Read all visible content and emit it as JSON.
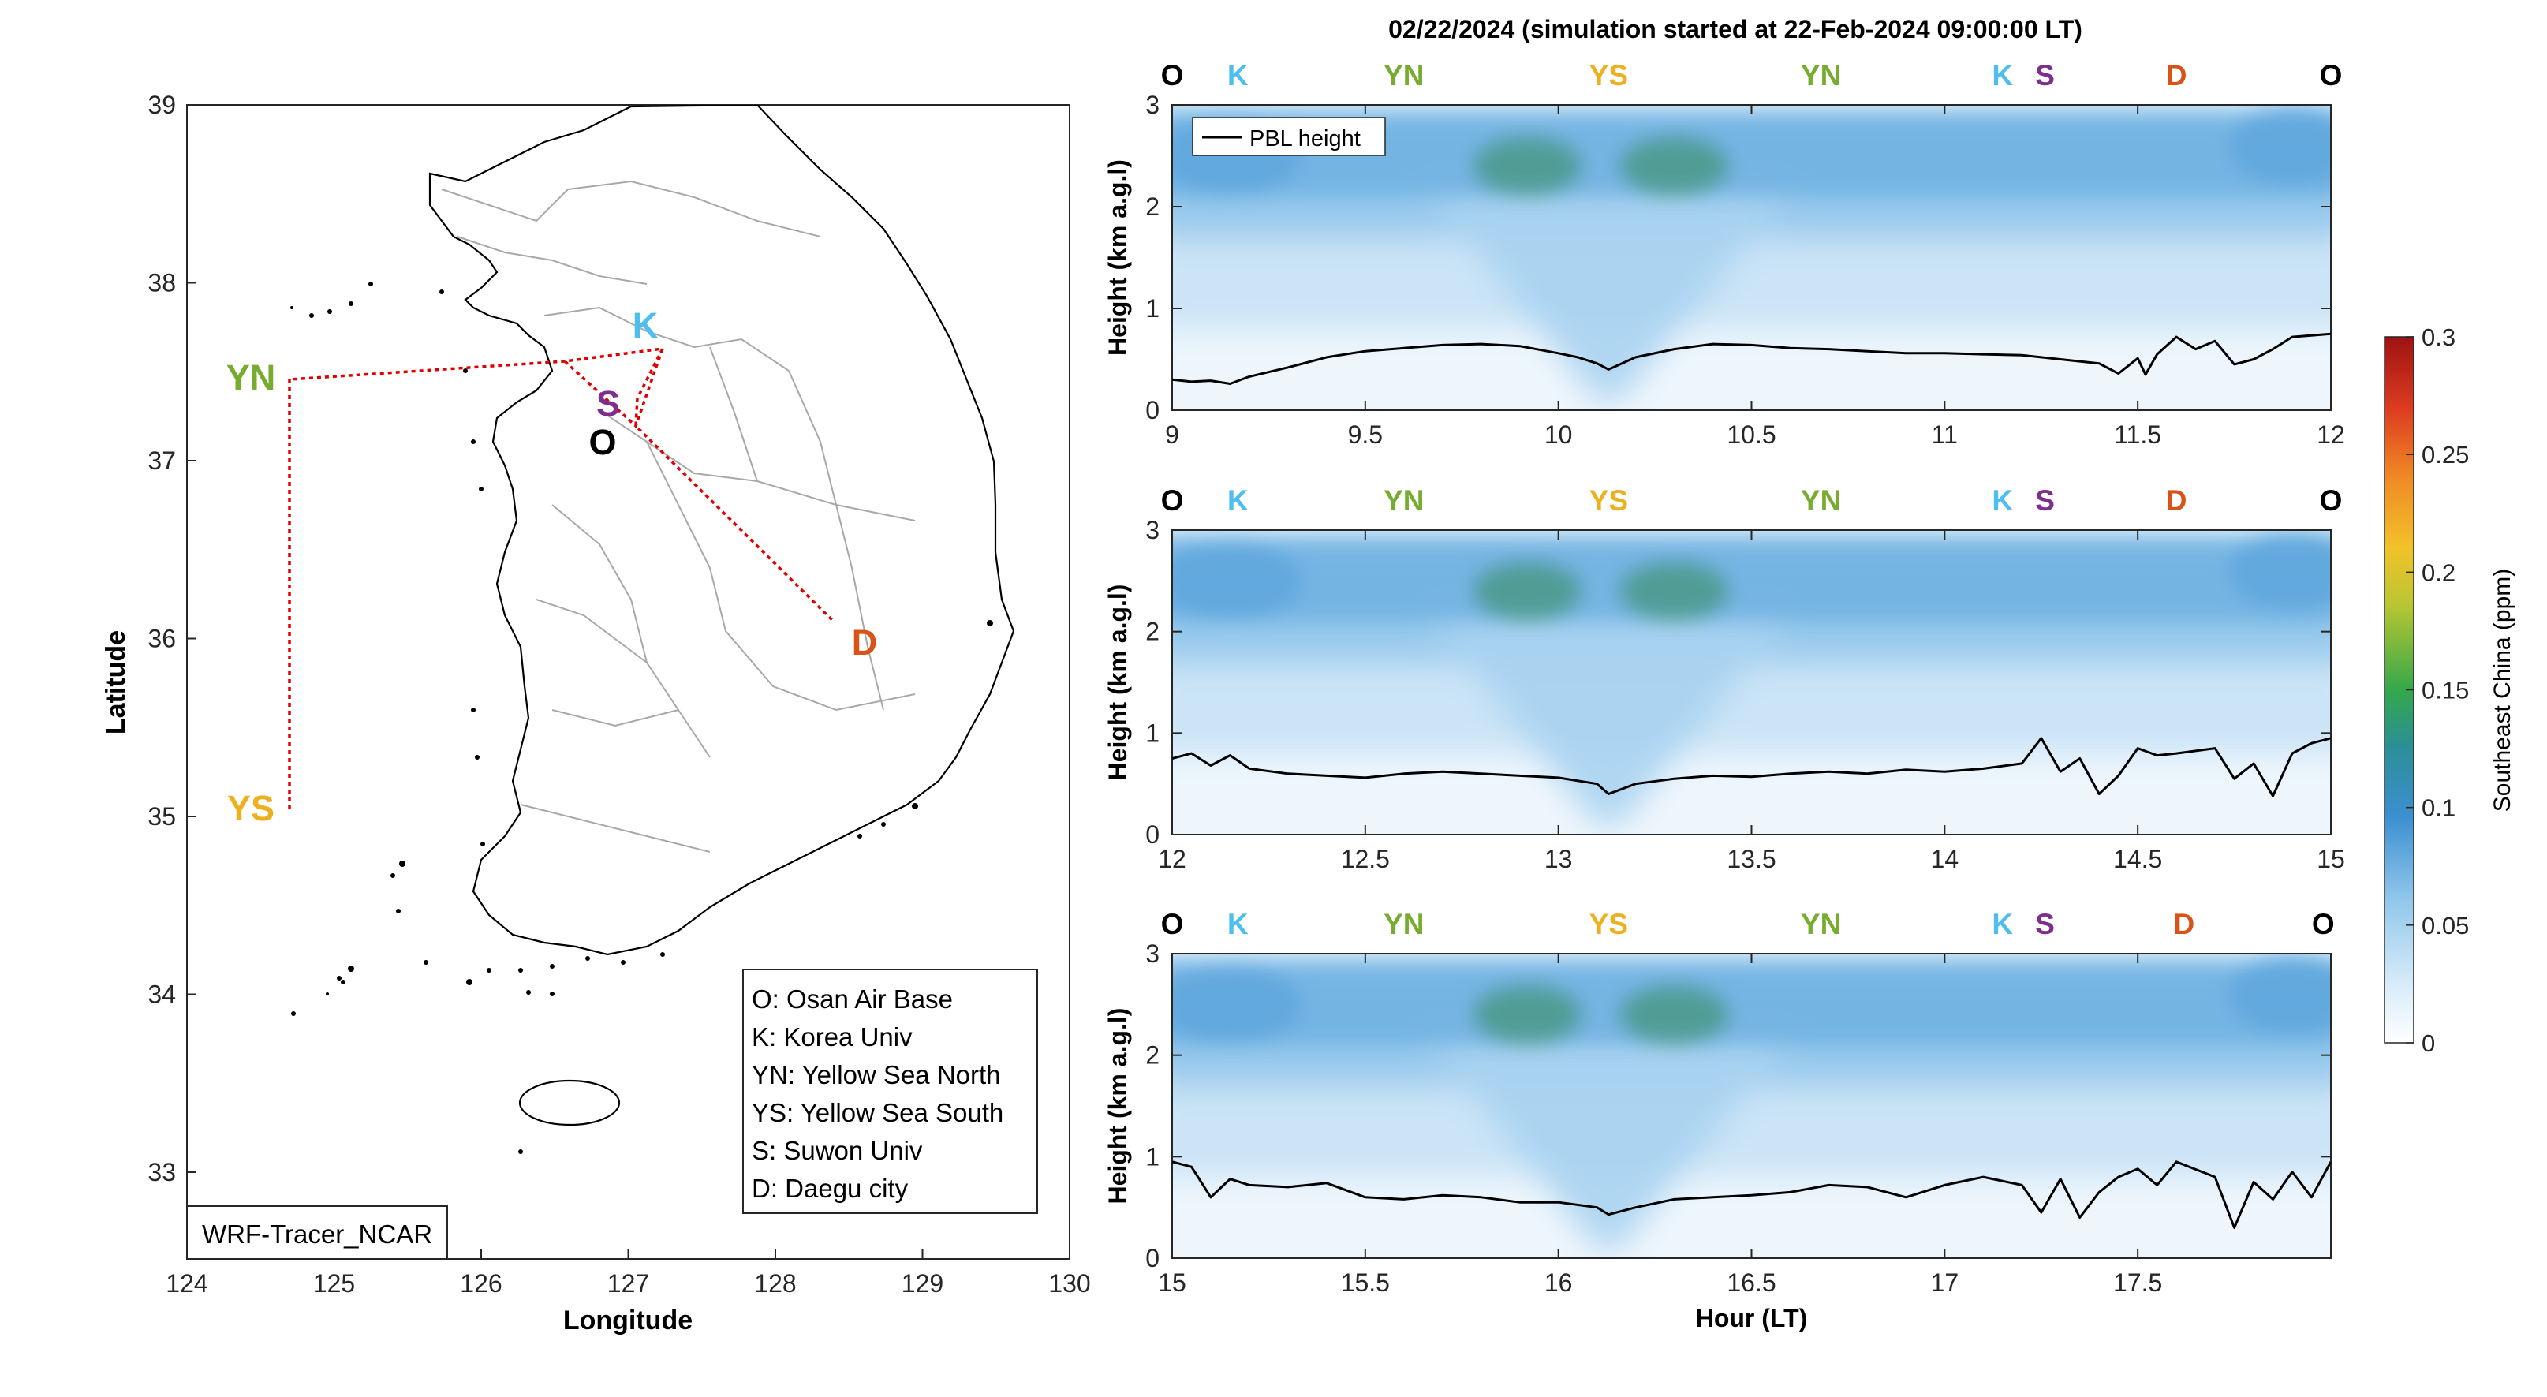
{
  "figure_title": "02/22/2024 (simulation started at 22-Feb-2024 09:00:00 LT)",
  "map": {
    "xlabel": "Longitude",
    "ylabel": "Latitude",
    "xticks": [
      "124",
      "125",
      "126",
      "127",
      "128",
      "129",
      "130"
    ],
    "yticks": [
      "33",
      "34",
      "35",
      "36",
      "37",
      "38",
      "39"
    ],
    "model_label": "WRF-Tracer_NCAR",
    "legend_lines": [
      "O: Osan Air Base",
      "K: Korea Univ",
      "YN: Yellow Sea North",
      "YS: Yellow Sea South",
      "S: Suwon Univ",
      "D: Daegu city"
    ],
    "sites": [
      {
        "id": "YN",
        "label": "YN",
        "lon": 124.7,
        "lat": 37.45,
        "color": "#77ac30"
      },
      {
        "id": "YS",
        "label": "YS",
        "lon": 124.7,
        "lat": 35.05,
        "color": "#edb120"
      },
      {
        "id": "K",
        "label": "K",
        "lon": 127.25,
        "lat": 37.6,
        "color": "#4dbeee"
      },
      {
        "id": "S",
        "label": "S",
        "lon": 126.95,
        "lat": 37.28,
        "color": "#7e2f8e"
      },
      {
        "id": "O",
        "label": "O",
        "lon": 127.05,
        "lat": 37.09,
        "color": "#000000"
      },
      {
        "id": "D",
        "label": "D",
        "lon": 128.6,
        "lat": 35.87,
        "color": "#d95319"
      }
    ]
  },
  "colors": {
    "track": "#e00000",
    "pbl_line": "#000000",
    "site_O": "#000000",
    "site_K": "#4dbeee",
    "site_YN": "#77ac30",
    "site_YS": "#edb120",
    "site_S": "#7e2f8e",
    "site_D": "#d95319"
  },
  "colorbar": {
    "label": "Southeast China (ppm)",
    "ticks": [
      "0",
      "0.05",
      "0.1",
      "0.15",
      "0.2",
      "0.25",
      "0.3"
    ],
    "range": [
      0,
      0.3
    ],
    "colormap": "jet-like (white → light blue → blue → green → yellow → orange → red)"
  },
  "chart_data": [
    {
      "type": "line",
      "panel": 1,
      "ylabel": "Height (km a.g.l)",
      "xlim": [
        9,
        12
      ],
      "ylim": [
        0,
        3
      ],
      "xticks": [
        "9",
        "9.5",
        "10",
        "10.5",
        "11",
        "11.5",
        "12"
      ],
      "yticks": [
        "0",
        "1",
        "2",
        "3"
      ],
      "legend": "PBL height",
      "site_labels": [
        {
          "label": "O",
          "x": 9.0
        },
        {
          "label": "K",
          "x": 9.17
        },
        {
          "label": "YN",
          "x": 9.6
        },
        {
          "label": "YS",
          "x": 10.13
        },
        {
          "label": "YN",
          "x": 10.68
        },
        {
          "label": "K",
          "x": 11.15
        },
        {
          "label": "S",
          "x": 11.26
        },
        {
          "label": "D",
          "x": 11.6
        },
        {
          "label": "O",
          "x": 12.0
        }
      ],
      "series": [
        {
          "name": "PBL height",
          "x": [
            9,
            9.05,
            9.1,
            9.15,
            9.2,
            9.3,
            9.4,
            9.5,
            9.6,
            9.7,
            9.8,
            9.9,
            10.0,
            10.05,
            10.1,
            10.13,
            10.2,
            10.3,
            10.4,
            10.5,
            10.6,
            10.7,
            10.8,
            10.9,
            11.0,
            11.1,
            11.2,
            11.3,
            11.4,
            11.45,
            11.5,
            11.52,
            11.55,
            11.6,
            11.65,
            11.7,
            11.75,
            11.8,
            11.85,
            11.9,
            12.0
          ],
          "y": [
            0.3,
            0.28,
            0.29,
            0.26,
            0.33,
            0.42,
            0.52,
            0.58,
            0.61,
            0.64,
            0.65,
            0.63,
            0.56,
            0.52,
            0.46,
            0.4,
            0.52,
            0.6,
            0.65,
            0.64,
            0.61,
            0.6,
            0.58,
            0.56,
            0.56,
            0.55,
            0.54,
            0.5,
            0.46,
            0.36,
            0.51,
            0.35,
            0.55,
            0.72,
            0.6,
            0.68,
            0.45,
            0.5,
            0.6,
            0.72,
            0.75
          ]
        }
      ],
      "tracer_field": {
        "ppm_max_approx": 0.12,
        "note": "bands ~0.1 ppm between 2 and 3 km, peak ~0.12 ppm near 2.3 km at 9.95 and 10.3 h"
      }
    },
    {
      "type": "line",
      "panel": 2,
      "ylabel": "Height (km a.g.l)",
      "xlim": [
        12,
        15
      ],
      "ylim": [
        0,
        3
      ],
      "xticks": [
        "12",
        "12.5",
        "13",
        "13.5",
        "14",
        "14.5",
        "15"
      ],
      "yticks": [
        "0",
        "1",
        "2",
        "3"
      ],
      "site_labels": [
        {
          "label": "O",
          "x": 12.0
        },
        {
          "label": "K",
          "x": 12.17
        },
        {
          "label": "YN",
          "x": 12.6
        },
        {
          "label": "YS",
          "x": 13.13
        },
        {
          "label": "YN",
          "x": 13.68
        },
        {
          "label": "K",
          "x": 14.15
        },
        {
          "label": "S",
          "x": 14.26
        },
        {
          "label": "D",
          "x": 14.6
        },
        {
          "label": "O",
          "x": 15.0
        }
      ],
      "series": [
        {
          "name": "PBL height",
          "x": [
            12,
            12.05,
            12.1,
            12.15,
            12.2,
            12.3,
            12.4,
            12.5,
            12.6,
            12.7,
            12.8,
            12.9,
            13.0,
            13.1,
            13.13,
            13.2,
            13.3,
            13.4,
            13.5,
            13.6,
            13.7,
            13.8,
            13.9,
            14.0,
            14.1,
            14.2,
            14.25,
            14.3,
            14.35,
            14.4,
            14.45,
            14.5,
            14.55,
            14.6,
            14.7,
            14.75,
            14.8,
            14.85,
            14.9,
            14.95,
            15.0
          ],
          "y": [
            0.75,
            0.8,
            0.68,
            0.78,
            0.65,
            0.6,
            0.58,
            0.56,
            0.6,
            0.62,
            0.6,
            0.58,
            0.56,
            0.5,
            0.4,
            0.5,
            0.55,
            0.58,
            0.57,
            0.6,
            0.62,
            0.6,
            0.64,
            0.62,
            0.65,
            0.7,
            0.95,
            0.62,
            0.75,
            0.4,
            0.58,
            0.85,
            0.78,
            0.8,
            0.85,
            0.55,
            0.7,
            0.38,
            0.8,
            0.9,
            0.95
          ]
        }
      ],
      "tracer_field": {
        "ppm_max_approx": 0.12,
        "note": "bands ~0.1 ppm between 2 and 3 km, peaks near 12.9 and 13.35 h"
      }
    },
    {
      "type": "line",
      "panel": 3,
      "ylabel": "Height (km a.g.l)",
      "xlabel": "Hour (LT)",
      "xlim": [
        15,
        18
      ],
      "ylim": [
        0,
        3
      ],
      "xticks": [
        "15",
        "15.5",
        "16",
        "16.5",
        "17",
        "17.5"
      ],
      "yticks": [
        "0",
        "1",
        "2",
        "3"
      ],
      "site_labels": [
        {
          "label": "O",
          "x": 15.0
        },
        {
          "label": "K",
          "x": 15.17
        },
        {
          "label": "YN",
          "x": 15.6
        },
        {
          "label": "YS",
          "x": 16.13
        },
        {
          "label": "YN",
          "x": 16.68
        },
        {
          "label": "K",
          "x": 17.15
        },
        {
          "label": "S",
          "x": 17.26
        },
        {
          "label": "D",
          "x": 17.62
        },
        {
          "label": "O",
          "x": 17.98
        }
      ],
      "series": [
        {
          "name": "PBL height",
          "x": [
            15,
            15.05,
            15.1,
            15.15,
            15.2,
            15.3,
            15.4,
            15.5,
            15.6,
            15.7,
            15.8,
            15.9,
            16.0,
            16.1,
            16.13,
            16.2,
            16.3,
            16.4,
            16.5,
            16.6,
            16.7,
            16.8,
            16.9,
            17.0,
            17.1,
            17.2,
            17.25,
            17.3,
            17.35,
            17.4,
            17.45,
            17.5,
            17.55,
            17.6,
            17.7,
            17.75,
            17.8,
            17.85,
            17.9,
            17.95,
            18.0
          ],
          "y": [
            0.95,
            0.9,
            0.6,
            0.78,
            0.72,
            0.7,
            0.74,
            0.6,
            0.58,
            0.62,
            0.6,
            0.55,
            0.55,
            0.5,
            0.43,
            0.5,
            0.58,
            0.6,
            0.62,
            0.65,
            0.72,
            0.7,
            0.6,
            0.72,
            0.8,
            0.72,
            0.45,
            0.78,
            0.4,
            0.65,
            0.8,
            0.88,
            0.72,
            0.95,
            0.8,
            0.3,
            0.75,
            0.58,
            0.85,
            0.6,
            0.95
          ]
        }
      ],
      "tracer_field": {
        "ppm_max_approx": 0.11,
        "note": "bands ~0.1 ppm between 2 and 3 km, weaker peaks near 15.95 and 16.35 h"
      }
    }
  ]
}
